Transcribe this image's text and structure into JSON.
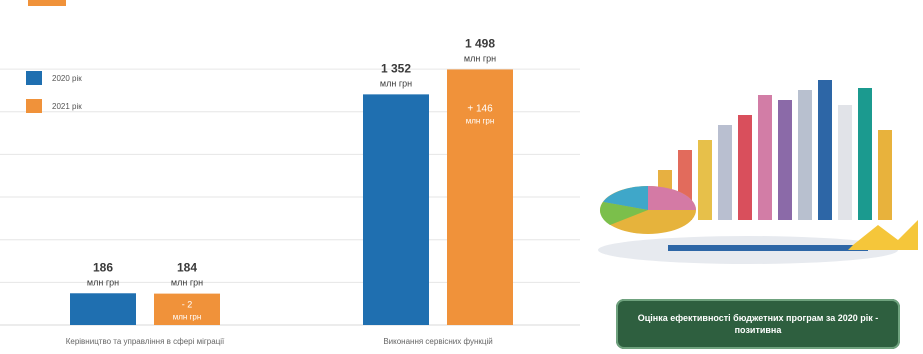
{
  "chart_data": {
    "type": "bar",
    "categories": [
      "Керівництво та управління в сфері міграції",
      "Виконання сервісних функцій"
    ],
    "series": [
      {
        "name": "2020 рік",
        "color": "#1f6fb0",
        "values": [
          186,
          1352
        ]
      },
      {
        "name": "2021 рік",
        "color": "#f0923a",
        "values": [
          184,
          1498
        ]
      }
    ],
    "value_labels": [
      [
        "186",
        "1 352"
      ],
      [
        "184",
        "1 498"
      ]
    ],
    "unit_label": "млн грн",
    "bar_inner_labels": [
      [
        null,
        null
      ],
      [
        "- 2",
        "+ 146"
      ]
    ],
    "ylim": [
      0,
      1700
    ],
    "grid": true,
    "legend_position": "top-left"
  },
  "callout": {
    "text": "Оцінка ефективності бюджетних програм за 2020 рік - позитивна"
  }
}
